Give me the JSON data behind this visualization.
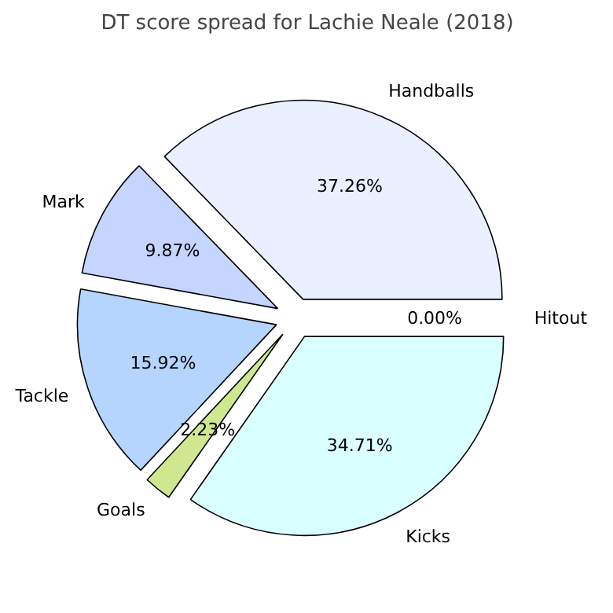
{
  "chart_data": {
    "type": "pie",
    "title": "DT score spread for Lachie Neale (2018)",
    "categories": [
      "Handballs",
      "Mark",
      "Tackle",
      "Goals",
      "Kicks",
      "Hitout"
    ],
    "values": [
      37.26,
      9.87,
      15.92,
      2.23,
      34.71,
      0.0
    ],
    "value_labels": [
      "37.26%",
      "9.87%",
      "15.92%",
      "2.23%",
      "34.71%",
      "0.00%"
    ],
    "colors": [
      "#eaf0ff",
      "#c5d5ff",
      "#b5d5ff",
      "#cfe88f",
      "#d9ffff",
      "#ffffff"
    ]
  }
}
